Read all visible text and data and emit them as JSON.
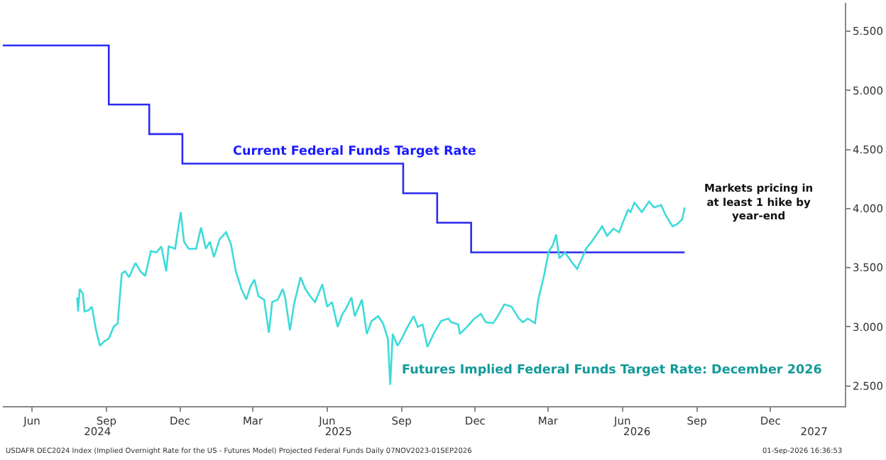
{
  "chart_data": {
    "type": "line",
    "xlim": [
      "2024-05-10",
      "2027-03-17"
    ],
    "ylim": [
      2.33,
      5.74
    ],
    "yticks": [
      {
        "value": 2.5,
        "label": "2.500"
      },
      {
        "value": 3.0,
        "label": "3.000"
      },
      {
        "value": 3.5,
        "label": "3.500"
      },
      {
        "value": 4.0,
        "label": "4.000"
      },
      {
        "value": 4.5,
        "label": "4.500"
      },
      {
        "value": 5.0,
        "label": "5.000"
      },
      {
        "value": 5.5,
        "label": "5.500"
      }
    ],
    "xticks": [
      {
        "value": "2024-06-15",
        "label": "Jun"
      },
      {
        "value": "2024-09-15",
        "label": "Sep"
      },
      {
        "value": "2024-12-15",
        "label": "Dec"
      },
      {
        "value": "2025-03-15",
        "label": "Mar"
      },
      {
        "value": "2025-06-15",
        "label": "Jun"
      },
      {
        "value": "2025-09-15",
        "label": "Sep"
      },
      {
        "value": "2025-12-15",
        "label": "Dec"
      },
      {
        "value": "2026-03-15",
        "label": "Mar"
      },
      {
        "value": "2026-06-15",
        "label": "Jun"
      },
      {
        "value": "2026-09-15",
        "label": "Sep"
      },
      {
        "value": "2026-12-15",
        "label": "Dec"
      }
    ],
    "x2lim": [
      "2024-05-10",
      "2027-03-17"
    ],
    "x2ticks": [
      {
        "value": "2024-09-04",
        "label": "2024"
      },
      {
        "value": "2025-06-29",
        "label": "2025"
      },
      {
        "value": "2026-07-03",
        "label": "2026"
      },
      {
        "value": "2027-02-07",
        "label": "2027"
      }
    ],
    "legend": false,
    "series": [
      {
        "name": "Current Federal Funds Target Rate",
        "type": "step",
        "color": "#2b2bf0",
        "x": [
          "2024-05-10",
          "2024-09-18",
          "2024-11-07",
          "2024-12-18",
          "2025-09-17",
          "2025-10-29",
          "2025-12-10",
          "2026-08-31"
        ],
        "values": [
          5.38,
          4.88,
          4.63,
          4.38,
          4.13,
          3.88,
          3.63,
          3.63
        ]
      },
      {
        "name": "Futures Implied Federal Funds Target Rate: December 2026",
        "color": "#3ddbd9",
        "x": [
          "2024-08-10",
          "2024-08-11",
          "2024-08-13",
          "2024-08-17",
          "2024-08-19",
          "2024-08-24",
          "2024-08-28",
          "2024-09-02",
          "2024-09-07",
          "2024-09-13",
          "2024-09-18",
          "2024-09-24",
          "2024-09-29",
          "2024-10-04",
          "2024-10-08",
          "2024-10-13",
          "2024-10-21",
          "2024-10-27",
          "2024-11-02",
          "2024-11-09",
          "2024-11-16",
          "2024-11-22",
          "2024-11-28",
          "2024-12-01",
          "2024-12-09",
          "2024-12-16",
          "2024-12-20",
          "2024-12-26",
          "2025-01-04",
          "2025-01-10",
          "2025-01-16",
          "2025-01-21",
          "2025-01-26",
          "2025-02-02",
          "2025-02-10",
          "2025-02-16",
          "2025-02-22",
          "2025-03-01",
          "2025-03-07",
          "2025-03-12",
          "2025-03-17",
          "2025-03-22",
          "2025-03-29",
          "2025-04-04",
          "2025-04-08",
          "2025-04-15",
          "2025-04-21",
          "2025-04-24",
          "2025-04-30",
          "2025-05-05",
          "2025-05-13",
          "2025-05-19",
          "2025-05-26",
          "2025-05-31",
          "2025-06-09",
          "2025-06-15",
          "2025-06-21",
          "2025-06-28",
          "2025-07-04",
          "2025-07-08",
          "2025-07-15",
          "2025-07-19",
          "2025-07-28",
          "2025-08-03",
          "2025-08-09",
          "2025-08-17",
          "2025-08-23",
          "2025-08-29",
          "2025-09-01",
          "2025-09-04",
          "2025-09-10",
          "2025-09-15",
          "2025-09-24",
          "2025-09-30",
          "2025-10-05",
          "2025-10-11",
          "2025-10-17",
          "2025-10-26",
          "2025-11-03",
          "2025-11-12",
          "2025-11-15",
          "2025-11-24",
          "2025-11-26",
          "2025-12-05",
          "2025-12-14",
          "2025-12-22",
          "2025-12-28",
          "2026-01-06",
          "2026-01-12",
          "2026-01-20",
          "2026-01-29",
          "2026-02-07",
          "2026-02-12",
          "2026-02-18",
          "2026-02-27",
          "2026-03-03",
          "2026-03-10",
          "2026-03-16",
          "2026-03-21",
          "2026-03-25",
          "2026-03-29",
          "2026-04-05",
          "2026-04-13",
          "2026-04-20",
          "2026-04-26",
          "2026-05-01",
          "2026-05-08",
          "2026-05-14",
          "2026-05-21",
          "2026-05-27",
          "2026-06-04",
          "2026-06-11",
          "2026-06-16",
          "2026-06-22",
          "2026-06-25",
          "2026-06-30",
          "2026-07-09",
          "2026-07-18",
          "2026-07-24",
          "2026-08-02",
          "2026-08-07",
          "2026-08-16",
          "2026-08-22",
          "2026-08-28",
          "2026-08-31"
        ],
        "values": [
          3.25,
          3.13,
          3.32,
          3.28,
          3.13,
          3.14,
          3.17,
          2.98,
          2.84,
          2.88,
          2.9,
          3.0,
          3.03,
          3.45,
          3.47,
          3.42,
          3.54,
          3.47,
          3.43,
          3.64,
          3.63,
          3.68,
          3.47,
          3.68,
          3.66,
          3.97,
          3.72,
          3.66,
          3.66,
          3.84,
          3.66,
          3.72,
          3.59,
          3.74,
          3.8,
          3.7,
          3.47,
          3.32,
          3.23,
          3.34,
          3.4,
          3.26,
          3.23,
          2.95,
          3.21,
          3.23,
          3.32,
          3.25,
          2.97,
          3.19,
          3.42,
          3.32,
          3.25,
          3.21,
          3.36,
          3.17,
          3.21,
          3.0,
          3.11,
          3.15,
          3.25,
          3.09,
          3.23,
          2.94,
          3.05,
          3.09,
          3.03,
          2.9,
          2.51,
          2.94,
          2.84,
          2.9,
          3.02,
          3.09,
          3.0,
          3.02,
          2.83,
          2.96,
          3.05,
          3.07,
          3.04,
          3.02,
          2.94,
          3.0,
          3.07,
          3.11,
          3.04,
          3.03,
          3.09,
          3.19,
          3.17,
          3.07,
          3.04,
          3.07,
          3.03,
          3.23,
          3.43,
          3.64,
          3.69,
          3.78,
          3.58,
          3.63,
          3.55,
          3.49,
          3.58,
          3.66,
          3.72,
          3.78,
          3.85,
          3.77,
          3.83,
          3.8,
          3.89,
          3.99,
          3.97,
          4.05,
          3.97,
          4.06,
          4.01,
          4.03,
          3.95,
          3.85,
          3.87,
          3.91,
          4.01
        ]
      }
    ],
    "annotations": [
      {
        "text": "Markets pricing in\nat least 1 hike by\nyear-end",
        "x": "2026-08-31",
        "y": 4.01
      },
      "USDAFR DEC2024 Index (Implied Overnight Rate for the US - Futures Model) Projected Federal Funds Daily 07NOV2023-01SEP2026",
      "01-Sep-2026 16:36:53"
    ]
  }
}
